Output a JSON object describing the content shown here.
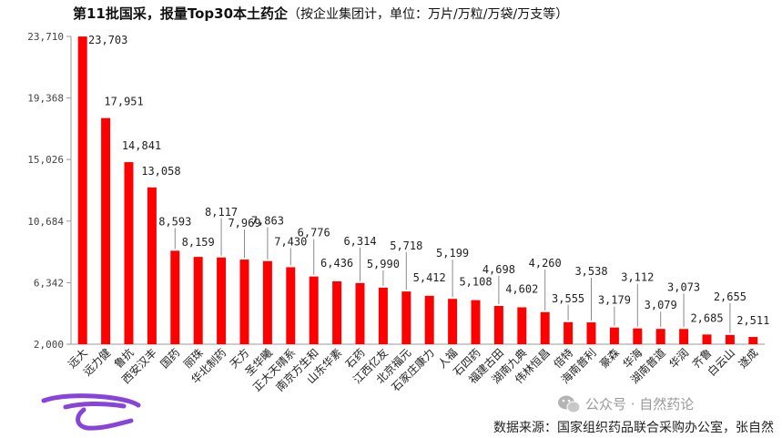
{
  "title": {
    "bold": "第11批国采，报量Top30本土药企",
    "note": "（按企业集团计，单位：万片/万粒/万袋/万支等）"
  },
  "source": "数据来源：国家组织药品联合采购办公室，张自然",
  "watermark": {
    "text": "公众号 · 自然药论",
    "icon": "wechat-icon"
  },
  "colors": {
    "bar": "#ff0000",
    "axis": "#9a9a9a",
    "leader": "#8a8a8a",
    "annotation": "#7b2fd6"
  },
  "chart_data": {
    "type": "bar",
    "title": "第11批国采，报量Top30本土药企（按企业集团计，单位：万片/万粒/万袋/万支等）",
    "ylim": [
      2000,
      23710
    ],
    "yticks": [
      2000,
      6342,
      10684,
      15026,
      19368,
      23710
    ],
    "ytick_labels": [
      "2,000",
      "6,342",
      "10,684",
      "15,026",
      "19,368",
      "23,710"
    ],
    "grid": false,
    "categories": [
      "远大",
      "远力健",
      "鲁抗",
      "西安汉丰",
      "国药",
      "丽珠",
      "华北制药",
      "天方",
      "圣华曦",
      "正大天晴系",
      "南京方生和",
      "山东华素",
      "石药",
      "江西亿友",
      "北京福元",
      "石家庄康力",
      "人福",
      "石四药",
      "福建古田",
      "湖南九典",
      "伟林恒昌",
      "倍特",
      "海南普利",
      "豪森",
      "华海",
      "湖南普道",
      "华润",
      "齐鲁",
      "白云山",
      "遂成"
    ],
    "values": [
      23703,
      17951,
      14841,
      13058,
      8593,
      8159,
      8117,
      7969,
      7863,
      7430,
      6776,
      6436,
      6314,
      5990,
      5718,
      5412,
      5199,
      5108,
      4698,
      4602,
      4260,
      3555,
      3538,
      3179,
      3112,
      3079,
      3073,
      2685,
      2655,
      2511
    ],
    "value_labels": [
      "23,703",
      "17,951",
      "14,841",
      "13,058",
      "8,593",
      "8,159",
      "8,117",
      "7,969",
      "7,863",
      "7,430",
      "6,776",
      "6,436",
      "6,314",
      "5,990",
      "5,718",
      "5,412",
      "5,199",
      "5,108",
      "4,698",
      "4,602",
      "4,260",
      "3,555",
      "3,538",
      "3,179",
      "3,112",
      "3,079",
      "3,073",
      "2,685",
      "2,655",
      "2,511"
    ]
  }
}
